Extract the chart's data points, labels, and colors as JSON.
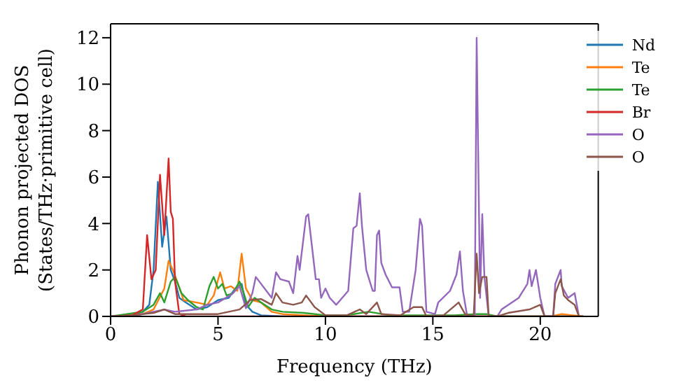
{
  "chart_data": {
    "type": "line",
    "xlabel": "Frequency (THz)",
    "ylabel": "Phonon projected DOS\n(States/THz·primitive cell)",
    "xlim": [
      0,
      22.7
    ],
    "ylim": [
      0,
      12.6
    ],
    "xticks": [
      0,
      5,
      10,
      15,
      20
    ],
    "yticks": [
      0,
      2,
      4,
      6,
      8,
      10,
      12
    ],
    "legend": "top right",
    "grid": false,
    "marker": "none",
    "series": [
      {
        "name": "Nd",
        "color": "#1f77b4",
        "x": [
          0,
          1,
          1.5,
          1.8,
          2.0,
          2.2,
          2.4,
          2.6,
          2.8,
          3.0,
          3.2,
          3.5,
          4,
          4.5,
          5,
          5.5,
          5.8,
          6.1,
          6.3,
          6.6,
          7,
          8,
          22
        ],
        "values": [
          0,
          0.05,
          0.2,
          0.5,
          2,
          5.8,
          3,
          4.3,
          2,
          1.5,
          0.8,
          0.6,
          0.3,
          0.4,
          0.7,
          0.8,
          1.2,
          1.4,
          0.5,
          0.2,
          0.05,
          0,
          0
        ]
      },
      {
        "name": "Te",
        "color": "#ff7f0e",
        "x": [
          0,
          1.5,
          2,
          2.5,
          2.7,
          2.9,
          3.1,
          3.4,
          4,
          4.5,
          4.8,
          5.1,
          5.3,
          5.6,
          5.9,
          6.1,
          6.3,
          6.6,
          7,
          7.5,
          8,
          9,
          10,
          20.5,
          21,
          21.5,
          22
        ],
        "values": [
          0,
          0.1,
          0.3,
          1.2,
          2.4,
          2,
          1.5,
          0.7,
          0.6,
          0.5,
          0.9,
          1.9,
          1.2,
          1.3,
          1.1,
          2.7,
          1.2,
          0.7,
          0.6,
          0.2,
          0.1,
          0.05,
          0,
          0,
          0.1,
          0.05,
          0
        ]
      },
      {
        "name": "Te",
        "color": "#2ca02c",
        "x": [
          0,
          1.5,
          2,
          2.3,
          2.5,
          2.8,
          3.0,
          3.3,
          3.6,
          4,
          4.3,
          4.6,
          4.8,
          5,
          5.2,
          5.4,
          5.7,
          6,
          6.2,
          6.4,
          6.7,
          7,
          7.5,
          8,
          9,
          10,
          11,
          12,
          13,
          16,
          17,
          17.5,
          18,
          22
        ],
        "values": [
          0,
          0.2,
          0.5,
          1.0,
          0.6,
          1.5,
          1.7,
          1.0,
          0.7,
          0.4,
          0.3,
          1.3,
          1.7,
          1.2,
          1.4,
          0.9,
          1.0,
          1.5,
          1.0,
          0.4,
          0.8,
          0.6,
          0.3,
          0.2,
          0.15,
          0.05,
          0.05,
          0.2,
          0.05,
          0.05,
          0.1,
          0.1,
          0,
          0
        ]
      },
      {
        "name": "Br",
        "color": "#d62728",
        "x": [
          0,
          1,
          1.5,
          1.7,
          1.9,
          2.1,
          2.3,
          2.5,
          2.7,
          2.8,
          2.9,
          3.0,
          3.2,
          3.5,
          22
        ],
        "values": [
          0,
          0.05,
          0.3,
          3.5,
          1.6,
          2,
          6.1,
          3.5,
          6.8,
          4.5,
          4.2,
          1.5,
          0.1,
          0,
          0
        ]
      },
      {
        "name": "O",
        "color": "#9467bd",
        "x": [
          0,
          1,
          2,
          2.5,
          3,
          4,
          4.5,
          5,
          5.64,
          6.0,
          6.3,
          6.6,
          6.76,
          7.5,
          7.7,
          7.9,
          8.3,
          8.5,
          8.7,
          8.8,
          9.1,
          9.2,
          9.55,
          9.7,
          9.8,
          10.0,
          10.2,
          10.5,
          11.06,
          11.3,
          11.45,
          11.6,
          11.7,
          11.9,
          12.2,
          12.3,
          12.4,
          12.5,
          12.6,
          12.8,
          13.1,
          13.45,
          13.6,
          13.9,
          14.2,
          14.4,
          14.5,
          14.7,
          15.1,
          15.25,
          15.8,
          16.1,
          16.26,
          16.4,
          16.6,
          16.95,
          17.04,
          17.2,
          17.3,
          17.4,
          17.6,
          18.0,
          18.2,
          19.0,
          19.4,
          19.5,
          19.6,
          19.8,
          20.0,
          20.2,
          20.6,
          20.7,
          20.95,
          21.0,
          21.3,
          21.6,
          21.8
        ],
        "values": [
          0,
          0,
          0.2,
          0.3,
          0.2,
          0.3,
          0.5,
          0.6,
          0.95,
          1.3,
          0.35,
          1.0,
          1.7,
          0.8,
          1.9,
          1.6,
          1.5,
          1.0,
          2.6,
          2.0,
          4.3,
          4.4,
          1.6,
          1.6,
          0.8,
          1.2,
          0.8,
          0.5,
          1.1,
          3.8,
          3.9,
          5.3,
          3.9,
          2.0,
          1.1,
          1.1,
          3.5,
          3.7,
          2.3,
          1.8,
          1.25,
          1.25,
          0.2,
          0.2,
          2.0,
          4.2,
          3.9,
          0.2,
          0.1,
          0.6,
          1.1,
          1.8,
          2.8,
          1.1,
          0,
          0,
          12.0,
          0.8,
          4.4,
          1.7,
          0,
          0,
          0.3,
          0.8,
          1.4,
          2.0,
          1.3,
          2.0,
          0.8,
          0,
          0,
          1.4,
          2.0,
          1.3,
          0.8,
          1.0,
          0
        ]
      },
      {
        "name": "O",
        "color": "#8c564b",
        "x": [
          0,
          1,
          2,
          2.5,
          3,
          4,
          5,
          5.5,
          6.0,
          6.5,
          7.0,
          7.5,
          7.7,
          8.0,
          8.5,
          8.9,
          9.1,
          9.5,
          10,
          11,
          11.6,
          11.9,
          12.4,
          12.6,
          13.5,
          14.1,
          14.5,
          14.7,
          15.5,
          16.2,
          16.5,
          16.9,
          17.04,
          17.15,
          17.3,
          17.5,
          17.6,
          18,
          18.5,
          19.5,
          20,
          20.2,
          20.6,
          20.7,
          20.95,
          21.1,
          21.3,
          21.6,
          21.8
        ],
        "values": [
          0,
          0.05,
          0.15,
          0.3,
          0.1,
          0.1,
          0.1,
          0.2,
          0.3,
          0.7,
          0.75,
          0.5,
          1.0,
          0.6,
          0.5,
          0.6,
          0.9,
          0.4,
          0.05,
          0.05,
          0.3,
          0.1,
          0.6,
          0.1,
          0.05,
          0.4,
          0.4,
          0,
          0.05,
          0.6,
          0.1,
          0,
          2.7,
          1.0,
          1.7,
          1.7,
          0,
          0,
          0.15,
          0.3,
          0.5,
          0,
          0,
          1.0,
          1.6,
          0.9,
          0.7,
          0.5,
          0
        ]
      }
    ]
  }
}
